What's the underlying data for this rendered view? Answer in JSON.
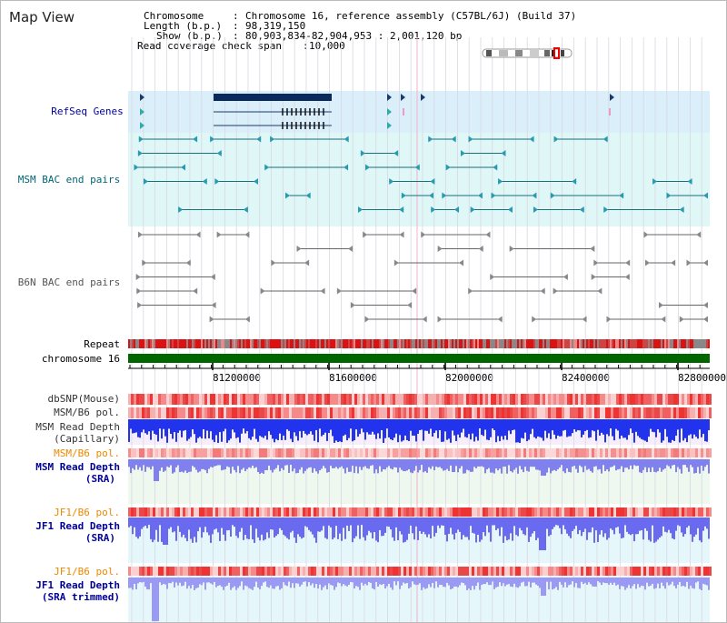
{
  "header": {
    "title": "Map View",
    "chromosome_label": "Chromosome",
    "chromosome_value": "Chromosome 16, reference assembly (C57BL/6J) (Build 37)",
    "length_label": "Length (b.p.)",
    "length_value": "98,319,150",
    "show_label": "Show (b.p.)",
    "show_value": "80,903,834-82,904,953 : 2,001,120 bp",
    "coverage_label": "Read coverage check span",
    "coverage_value": "10,000"
  },
  "tracks": {
    "refseq": "RefSeq Genes",
    "msm_bac": "MSM BAC end pairs",
    "b6n_bac": "B6N BAC end pairs",
    "repeat": "Repeat",
    "chromosome": "chromosome 16",
    "dbsnp": "dbSNP(Mouse)",
    "msm_b6_pol_1": "MSM/B6 pol.",
    "msm_read_depth_cap_1": "MSM Read Depth",
    "msm_read_depth_cap_2": "(Capillary)",
    "msm_b6_pol_2": "MSM/B6 pol.",
    "msm_read_depth_sra_1": "MSM Read Depth",
    "msm_read_depth_sra_2": "(SRA)",
    "jf1_b6_pol_1": "JF1/B6 pol.",
    "jf1_read_depth_1": "JF1 Read Depth",
    "jf1_read_depth_2": "(SRA)",
    "jf1_b6_pol_2": "JF1/B6 pol.",
    "jf1_read_depth_trim_1": "JF1 Read Depth",
    "jf1_read_depth_trim_2": "(SRA trimmed)"
  },
  "axis": {
    "ticks": [
      "81200000",
      "81600000",
      "82000000",
      "82400000",
      "82800000"
    ]
  },
  "colors": {
    "refseq_label": "#000099",
    "msm_label": "#006677",
    "b6n_label": "#555555",
    "orange_label": "#ee8800",
    "blue_label": "#000099",
    "refseq_band": "#dbeffa",
    "msm_band": "#e0f7f7",
    "chromosome_bar": "#006600",
    "depth_blue": "#2233ee",
    "depth_light": "#8888ff"
  }
}
